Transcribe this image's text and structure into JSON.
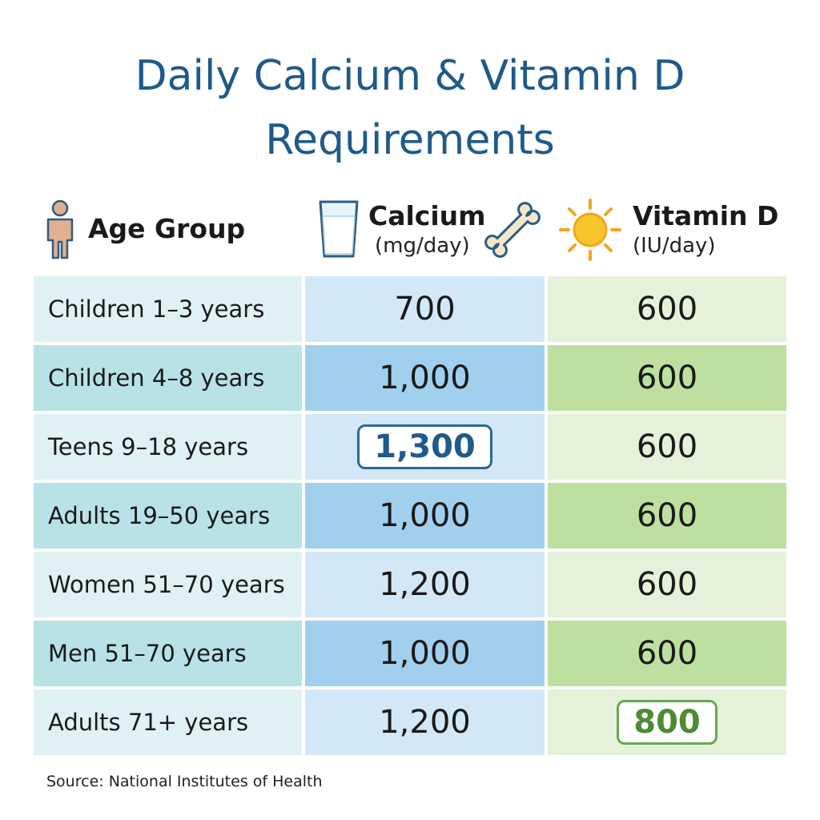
{
  "title": "Daily Calcium & Vitamin D Requirements",
  "table": {
    "headers": [
      {
        "label": "Age Group"
      },
      {
        "label": "Calcium",
        "unit": "(mg/day)"
      },
      {
        "label": "Vitamin D",
        "unit": "(IU/day)"
      }
    ],
    "rows": [
      [
        "Children 1–3 years",
        "700",
        "600"
      ],
      [
        "Children 4–8 years",
        "1,000",
        "600"
      ],
      [
        "Teens 9–18 years",
        "1,300",
        "600"
      ],
      [
        "Adults 19–50 years",
        "1,000",
        "600"
      ],
      [
        "Women 51–70 years",
        "1,200",
        "600"
      ],
      [
        "Men 51–70 years",
        "1,000",
        "600"
      ],
      [
        "Adults 71+ years",
        "1,200",
        "800"
      ]
    ]
  },
  "source": "Source: National Institutes of Health"
}
